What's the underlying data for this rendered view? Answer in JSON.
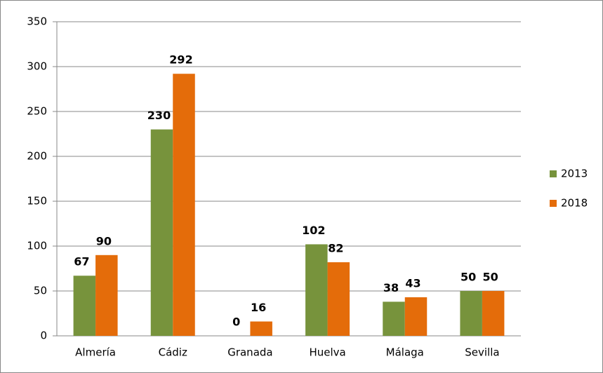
{
  "chart_data": {
    "type": "bar",
    "categories": [
      "Almería",
      "Cádiz",
      "Granada",
      "Huelva",
      "Málaga",
      "Sevilla"
    ],
    "series": [
      {
        "name": "2013",
        "color": "#77933c",
        "values": [
          67,
          230,
          0,
          102,
          38,
          50
        ]
      },
      {
        "name": "2018",
        "color": "#e46c0a",
        "values": [
          90,
          292,
          16,
          82,
          43,
          50
        ]
      }
    ],
    "ylim": [
      0,
      350
    ],
    "yticks": [
      0,
      50,
      100,
      150,
      200,
      250,
      300,
      350
    ],
    "grid": true,
    "legend": "right"
  }
}
